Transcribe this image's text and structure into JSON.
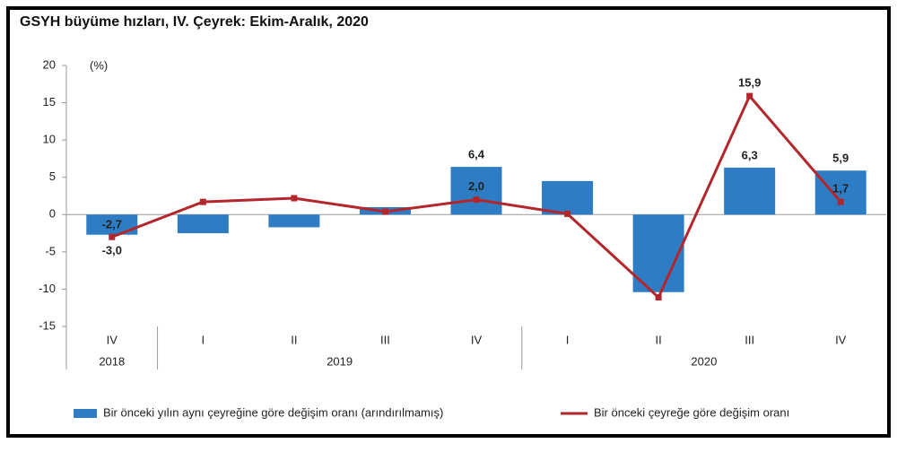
{
  "chart_data": {
    "type": "bar-line",
    "title": "GSYH büyüme hızları, IV. Çeyrek: Ekim-Aralık, 2020",
    "y_label": "(%)",
    "categories": [
      "IV",
      "I",
      "II",
      "III",
      "IV",
      "I",
      "II",
      "III",
      "IV"
    ],
    "groups": [
      {
        "label": "2018",
        "size": 1
      },
      {
        "label": "2019",
        "size": 4
      },
      {
        "label": "2020",
        "size": 4
      }
    ],
    "series": [
      {
        "name": "Bir önceki yılın aynı çeyreğine göre değişim oranı (arındırılmamış)",
        "type": "bar",
        "color": "#2e7dc4",
        "values": [
          -2.7,
          -2.5,
          -1.7,
          1.0,
          6.4,
          4.5,
          -10.4,
          6.3,
          5.9
        ],
        "value_labels": [
          "-2,7",
          null,
          null,
          null,
          "6,4",
          null,
          null,
          "6,3",
          "5,9"
        ]
      },
      {
        "name": "Bir önceki çeyreğe göre değişim oranı",
        "type": "line",
        "color": "#b3262b",
        "values": [
          -3.0,
          1.7,
          2.2,
          0.4,
          2.0,
          0.1,
          -11.1,
          15.9,
          1.7
        ],
        "value_labels": [
          "-3,0",
          null,
          null,
          null,
          "2,0",
          null,
          null,
          "15,9",
          "1,7"
        ]
      }
    ],
    "ylim": [
      -15,
      20
    ],
    "yticks": [
      -15,
      -10,
      -5,
      0,
      5,
      10,
      15,
      20
    ],
    "grid": false,
    "legend": "bottom"
  }
}
